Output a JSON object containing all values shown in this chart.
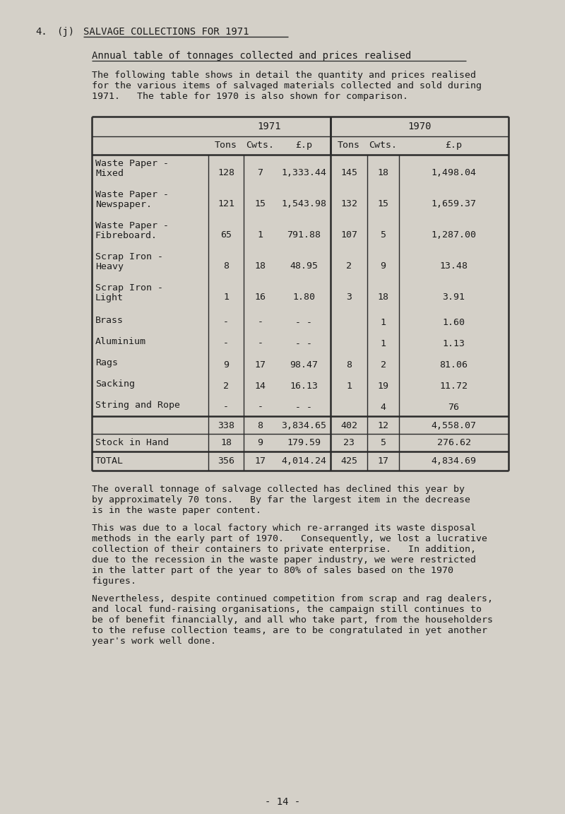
{
  "bg_color": "#d4d0c8",
  "title_num": "4.",
  "title_sub": "(j)",
  "title_main": "SALVAGE COLLECTIONS FOR 1971",
  "subtitle": "Annual table of tonnages collected and prices realised",
  "intro_text": "The following table shows in detail the quantity and prices realised\nfor the various items of salvaged materials collected and sold during\n1971.   The table for 1970 is also shown for comparison.",
  "col_headers_year": [
    "1971",
    "1970"
  ],
  "col_headers_sub": [
    "Tons",
    "Cwts.",
    "£.p",
    "Tons",
    "Cwts.",
    "£.p"
  ],
  "table_rows": [
    {
      "label1": "Waste Paper -",
      "label2": "Mixed",
      "t71": "128",
      "c71": "7",
      "p71": "1,333.44",
      "t70": "145",
      "c70": "18",
      "p70": "1,498.04"
    },
    {
      "label1": "Waste Paper -",
      "label2": "Newspaper.",
      "t71": "121",
      "c71": "15",
      "p71": "1,543.98",
      "t70": "132",
      "c70": "15",
      "p70": "1,659.37"
    },
    {
      "label1": "Waste Paper -",
      "label2": "Fibreboard.",
      "t71": "65",
      "c71": "1",
      "p71": "791.88",
      "t70": "107",
      "c70": "5",
      "p70": "1,287.00"
    },
    {
      "label1": "Scrap Iron -",
      "label2": "Heavy",
      "t71": "8",
      "c71": "18",
      "p71": "48.95",
      "t70": "2",
      "c70": "9",
      "p70": "13.48"
    },
    {
      "label1": "Scrap Iron -",
      "label2": "Light",
      "t71": "1",
      "c71": "16",
      "p71": "1.80",
      "t70": "3",
      "c70": "18",
      "p70": "3.91"
    },
    {
      "label1": "Brass",
      "label2": "",
      "t71": "-",
      "c71": "-",
      "p71": "- -",
      "t70": "",
      "c70": "1",
      "p70": "1.60"
    },
    {
      "label1": "Aluminium",
      "label2": "",
      "t71": "-",
      "c71": "-",
      "p71": "- -",
      "t70": "",
      "c70": "1",
      "p70": "1.13"
    },
    {
      "label1": "Rags",
      "label2": "",
      "t71": "9",
      "c71": "17",
      "p71": "98.47",
      "t70": "8",
      "c70": "2",
      "p70": "81.06"
    },
    {
      "label1": "Sacking",
      "label2": "",
      "t71": "2",
      "c71": "14",
      "p71": "16.13",
      "t70": "1",
      "c70": "19",
      "p70": "11.72"
    },
    {
      "label1": "String and Rope",
      "label2": "",
      "t71": "-",
      "c71": "-",
      "p71": "- -",
      "t70": "",
      "c70": "4",
      "p70": "76"
    }
  ],
  "subtotal_row": {
    "t71": "338",
    "c71": "8",
    "p71": "3,834.65",
    "t70": "402",
    "c70": "12",
    "p70": "4,558.07"
  },
  "stock_row": {
    "label": "Stock in Hand",
    "t71": "18",
    "c71": "9",
    "p71": "179.59",
    "t70": "23",
    "c70": "5",
    "p70": "276.62"
  },
  "total_row": {
    "label": "TOTAL",
    "t71": "356",
    "c71": "17",
    "p71": "4,014.24",
    "t70": "425",
    "c70": "17",
    "p70": "4,834.69"
  },
  "para1": "The overall tonnage of salvage collected has declined this year by\nby approximately 70 tons.   By far the largest item in the decrease\nis in the waste paper content.",
  "para2": "This was due to a local factory which re-arranged its waste disposal\nmethods in the early part of 1970.   Consequently, we lost a lucrative\ncollection of their containers to private enterprise.   In addition,\ndue to the recession in the waste paper industry, we were restricted\nin the latter part of the year to 80% of sales based on the 1970\nfigures.",
  "para3": "Nevertheless, despite continued competition from scrap and rag dealers,\nand local fund-raising organisations, the campaign still continues to\nbe of benefit financially, and all who take part, from the householders\nto the refuse collection teams, are to be congratulated in yet another\nyear's work well done.",
  "page_num": "- 14 -",
  "font_family": "DejaVu Sans Mono",
  "text_color": "#1c1c1c",
  "table_line_color": "#2a2a2a"
}
